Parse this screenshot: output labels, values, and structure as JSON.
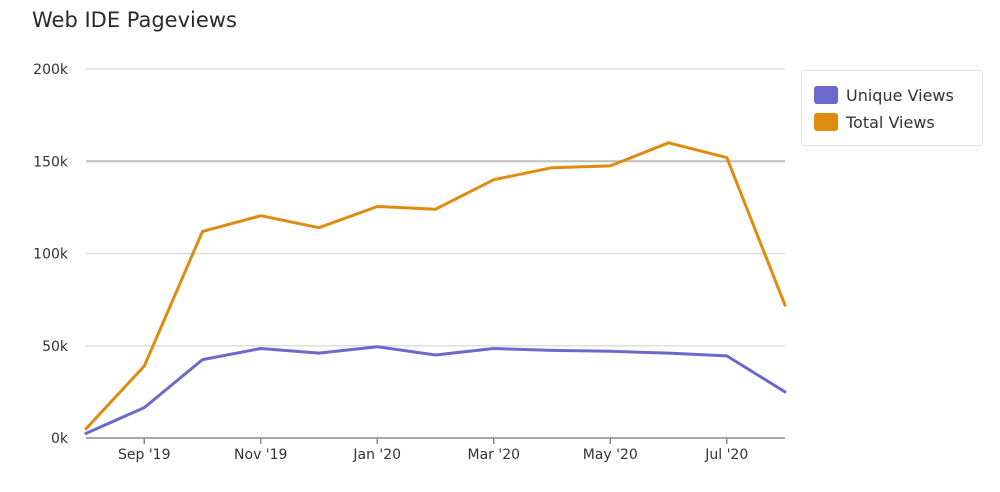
{
  "chart_data": {
    "type": "line",
    "title": "Web IDE Pageviews",
    "x": [
      "2019-08",
      "2019-09",
      "2019-10",
      "2019-11",
      "2019-12",
      "2020-01",
      "2020-02",
      "2020-03",
      "2020-04",
      "2020-05",
      "2020-06",
      "2020-07",
      "2020-08"
    ],
    "x_tick_labels": [
      "Sep '19",
      "Nov '19",
      "Jan '20",
      "Mar '20",
      "May '20",
      "Jul '20"
    ],
    "y_tick_labels": [
      "0k",
      "50k",
      "100k",
      "150k",
      "200k"
    ],
    "ylim": [
      0,
      200000
    ],
    "grid": true,
    "legend_position": "right",
    "series": [
      {
        "name": "Unique Views",
        "color": "#6b69cc",
        "values": [
          2500,
          16500,
          42500,
          48500,
          46000,
          49500,
          45000,
          48500,
          47500,
          47000,
          46000,
          44500,
          25000
        ]
      },
      {
        "name": "Total Views",
        "color": "#e08a10",
        "values": [
          5000,
          39000,
          112000,
          120500,
          114000,
          125500,
          124000,
          140000,
          146500,
          147500,
          160000,
          152000,
          72000
        ]
      }
    ]
  }
}
